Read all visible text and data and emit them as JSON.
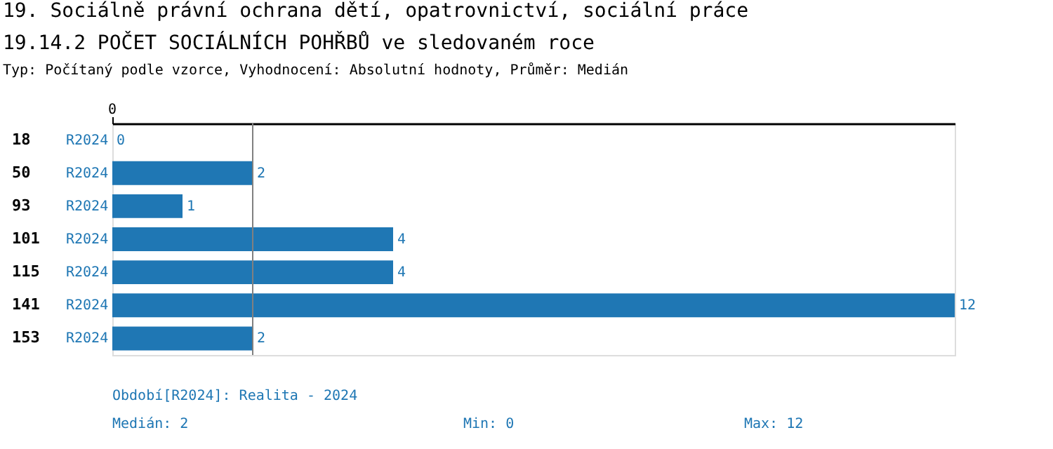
{
  "chart_data": {
    "type": "bar",
    "orientation": "horizontal",
    "title": "19. Sociálně právní ochrana dětí, opatrovnictví, sociální práce",
    "subtitle": "19.14.2 POČET SOCIÁLNÍCH POHŘBŮ ve sledovaném roce",
    "categories": [
      "18",
      "50",
      "93",
      "101",
      "115",
      "141",
      "153"
    ],
    "series": [
      {
        "name": "R2024",
        "color": "#1f77b4",
        "values": [
          0,
          2,
          1,
          4,
          4,
          12,
          2
        ]
      }
    ],
    "xlim": [
      0,
      12
    ],
    "data_labels": true,
    "ref_lines": [
      {
        "axis": "x",
        "value": 2,
        "color": "#808080"
      }
    ],
    "annotations": [
      "0",
      "Typ: Počítaný podle vzorce, Vyhodnocení: Absolutní hodnoty, Průměr: Medián",
      "Období[R2024]: Realita - 2024",
      "Medián: 2",
      "Min: 0",
      "Max: 12"
    ]
  }
}
